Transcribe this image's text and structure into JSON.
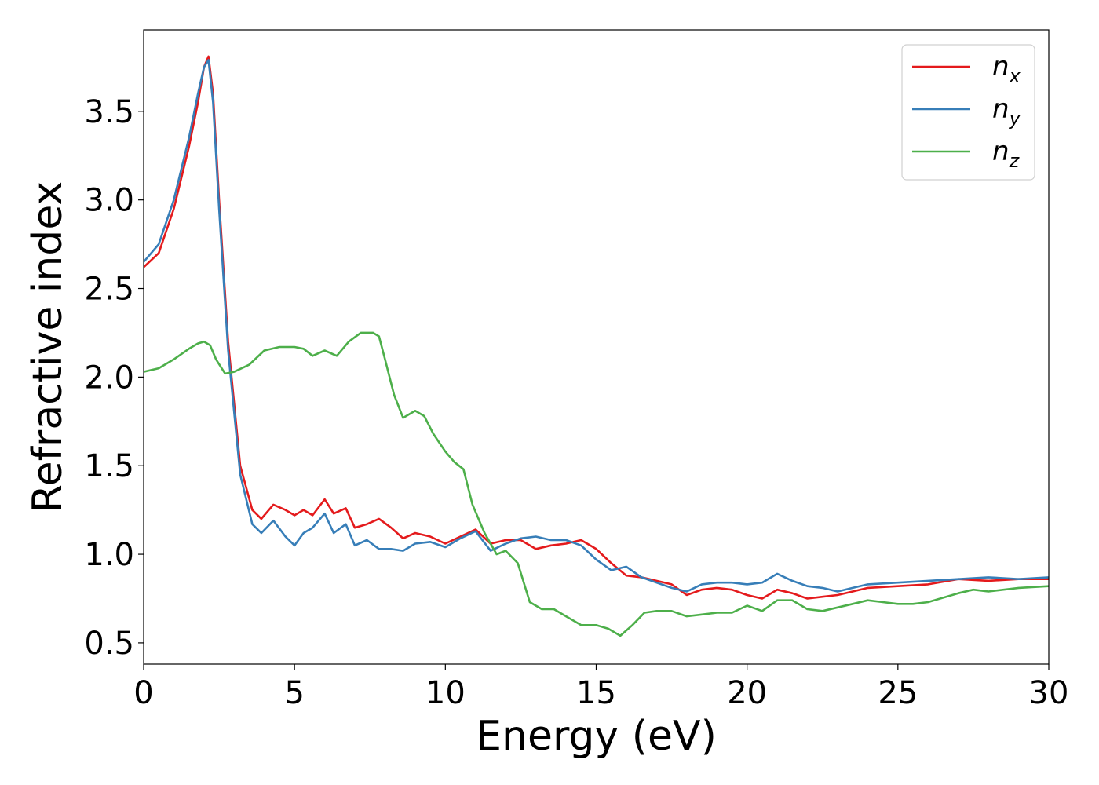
{
  "chart_data": {
    "type": "line",
    "xlabel": "Energy (eV)",
    "ylabel": "Refractive index",
    "xlim": [
      0,
      30
    ],
    "ylim": [
      0.38,
      3.96
    ],
    "xticks": [
      0,
      5,
      10,
      15,
      20,
      25,
      30
    ],
    "yticks": [
      0.5,
      1.0,
      1.5,
      2.0,
      2.5,
      3.0,
      3.5
    ],
    "xtick_labels": [
      "0",
      "5",
      "10",
      "15",
      "20",
      "25",
      "30"
    ],
    "ytick_labels": [
      "0.5",
      "1.0",
      "1.5",
      "2.0",
      "2.5",
      "3.0",
      "3.5"
    ],
    "grid": false,
    "legend_position": "top-right",
    "series": [
      {
        "name": "n",
        "subscript": "x",
        "color": "#e41a1c",
        "x": [
          0,
          0.5,
          1.0,
          1.5,
          1.8,
          2.0,
          2.15,
          2.3,
          2.5,
          2.8,
          3.2,
          3.6,
          3.9,
          4.3,
          4.7,
          5.0,
          5.3,
          5.6,
          6.0,
          6.3,
          6.7,
          7.0,
          7.4,
          7.8,
          8.2,
          8.6,
          9.0,
          9.5,
          10.0,
          10.5,
          11.0,
          11.5,
          12.0,
          12.5,
          13.0,
          13.5,
          14.0,
          14.5,
          15.0,
          15.5,
          16.0,
          16.5,
          17.0,
          17.5,
          18.0,
          18.5,
          19.0,
          19.5,
          20.0,
          20.5,
          21.0,
          21.5,
          22.0,
          22.5,
          23.0,
          23.5,
          24.0,
          25.0,
          26.0,
          27.0,
          28.0,
          29.0,
          30.0
        ],
        "y": [
          2.62,
          2.7,
          2.95,
          3.3,
          3.55,
          3.75,
          3.81,
          3.6,
          3.0,
          2.2,
          1.5,
          1.25,
          1.2,
          1.28,
          1.25,
          1.22,
          1.25,
          1.22,
          1.31,
          1.23,
          1.26,
          1.15,
          1.17,
          1.2,
          1.15,
          1.09,
          1.12,
          1.1,
          1.06,
          1.1,
          1.14,
          1.06,
          1.08,
          1.08,
          1.03,
          1.05,
          1.06,
          1.08,
          1.03,
          0.95,
          0.88,
          0.87,
          0.85,
          0.83,
          0.77,
          0.8,
          0.81,
          0.8,
          0.77,
          0.75,
          0.8,
          0.78,
          0.75,
          0.76,
          0.77,
          0.79,
          0.81,
          0.82,
          0.83,
          0.86,
          0.85,
          0.86,
          0.86
        ]
      },
      {
        "name": "n",
        "subscript": "y",
        "color": "#377eb8",
        "x": [
          0,
          0.5,
          1.0,
          1.5,
          1.8,
          2.0,
          2.15,
          2.3,
          2.5,
          2.8,
          3.2,
          3.6,
          3.9,
          4.3,
          4.7,
          5.0,
          5.3,
          5.6,
          6.0,
          6.3,
          6.7,
          7.0,
          7.4,
          7.8,
          8.2,
          8.6,
          9.0,
          9.5,
          10.0,
          10.5,
          11.0,
          11.5,
          12.0,
          12.5,
          13.0,
          13.5,
          14.0,
          14.5,
          15.0,
          15.5,
          16.0,
          16.5,
          17.0,
          17.5,
          18.0,
          18.5,
          19.0,
          19.5,
          20.0,
          20.5,
          21.0,
          21.5,
          22.0,
          22.5,
          23.0,
          23.5,
          24.0,
          25.0,
          26.0,
          27.0,
          28.0,
          29.0,
          30.0
        ],
        "y": [
          2.65,
          2.75,
          3.0,
          3.35,
          3.6,
          3.75,
          3.79,
          3.55,
          2.95,
          2.15,
          1.45,
          1.17,
          1.12,
          1.19,
          1.1,
          1.05,
          1.12,
          1.15,
          1.23,
          1.12,
          1.17,
          1.05,
          1.08,
          1.03,
          1.03,
          1.02,
          1.06,
          1.07,
          1.04,
          1.09,
          1.13,
          1.02,
          1.06,
          1.09,
          1.1,
          1.08,
          1.08,
          1.05,
          0.97,
          0.91,
          0.93,
          0.87,
          0.84,
          0.81,
          0.79,
          0.83,
          0.84,
          0.84,
          0.83,
          0.84,
          0.89,
          0.85,
          0.82,
          0.81,
          0.79,
          0.81,
          0.83,
          0.84,
          0.85,
          0.86,
          0.87,
          0.86,
          0.87
        ]
      },
      {
        "name": "n",
        "subscript": "z",
        "color": "#4daf4a",
        "x": [
          0,
          0.5,
          1.0,
          1.5,
          1.8,
          2.0,
          2.2,
          2.4,
          2.7,
          3.0,
          3.5,
          4.0,
          4.5,
          5.0,
          5.3,
          5.6,
          6.0,
          6.4,
          6.8,
          7.2,
          7.6,
          7.8,
          8.0,
          8.3,
          8.6,
          9.0,
          9.3,
          9.6,
          10.0,
          10.3,
          10.6,
          10.9,
          11.3,
          11.7,
          12.0,
          12.4,
          12.8,
          13.2,
          13.6,
          14.0,
          14.5,
          15.0,
          15.4,
          15.8,
          16.2,
          16.6,
          17.0,
          17.5,
          18.0,
          18.5,
          19.0,
          19.5,
          20.0,
          20.5,
          21.0,
          21.5,
          22.0,
          22.5,
          23.0,
          23.5,
          24.0,
          24.5,
          25.0,
          25.5,
          26.0,
          27.0,
          27.5,
          28.0,
          29.0,
          30.0
        ],
        "y": [
          2.03,
          2.05,
          2.1,
          2.16,
          2.19,
          2.2,
          2.18,
          2.1,
          2.02,
          2.03,
          2.07,
          2.15,
          2.17,
          2.17,
          2.16,
          2.12,
          2.15,
          2.12,
          2.2,
          2.25,
          2.25,
          2.23,
          2.1,
          1.9,
          1.77,
          1.81,
          1.78,
          1.68,
          1.58,
          1.52,
          1.48,
          1.28,
          1.12,
          1.0,
          1.02,
          0.95,
          0.73,
          0.69,
          0.69,
          0.65,
          0.6,
          0.6,
          0.58,
          0.54,
          0.6,
          0.67,
          0.68,
          0.68,
          0.65,
          0.66,
          0.67,
          0.67,
          0.71,
          0.68,
          0.74,
          0.74,
          0.69,
          0.68,
          0.7,
          0.72,
          0.74,
          0.73,
          0.72,
          0.72,
          0.73,
          0.78,
          0.8,
          0.79,
          0.81,
          0.82
        ]
      }
    ]
  }
}
